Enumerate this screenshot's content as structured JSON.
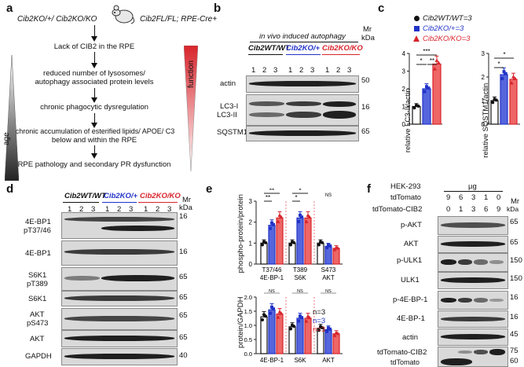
{
  "panel_a": {
    "label": "a",
    "genotype_left": "Cib2KO/+/ Cib2KO/KO",
    "genotype_right": "Cib2FL/FL; RPE-Cre+",
    "steps": [
      "Lack of CIB2 in the RPE",
      "reduced number of lysosomes/",
      "autophagy associated protein levels",
      "chronic phagocytic dysregulation",
      "chronic accumulation of esterified lipids/ APOE/ C3",
      "below and within the RPE",
      "RPE pathology and secondary PR dysfunction"
    ],
    "age_label": "age",
    "function_label": "function"
  },
  "panel_b": {
    "label": "b",
    "title": "in vivo induced autophagy",
    "groups": [
      "Cib2WT/WT",
      "Cib2KO/+",
      "Cib2KO/KO"
    ],
    "lanes": [
      "1",
      "2",
      "3",
      "1",
      "2",
      "3",
      "1",
      "2",
      "3"
    ],
    "mr": "Mr",
    "kda": "kDa",
    "rows": [
      {
        "name": "actin",
        "mw": "50"
      },
      {
        "name": "LC3-I",
        "name2": "LC3-II",
        "mw": "16"
      },
      {
        "name": "SQSTM1",
        "mw": "65"
      }
    ]
  },
  "panel_c": {
    "label": "c",
    "legend": [
      "Cib2WT/WT=3",
      "Cib2KO/+=3",
      "Cib2KO/KO=3"
    ],
    "ylabel_left": "relative LC3-II/actin",
    "ylabel_right": "relative SQSTM1/actin",
    "left_ticks": [
      "0",
      "1",
      "2",
      "3",
      "4"
    ],
    "right_ticks": [
      "0",
      "1",
      "2",
      "3"
    ],
    "left_sig": [
      "***",
      "*",
      "**"
    ],
    "right_sig": [
      "*",
      "*"
    ]
  },
  "panel_d": {
    "label": "d",
    "groups": [
      "Cib2WT/WT",
      "Cib2KO/+",
      "Cib2KO/KO"
    ],
    "lanes": [
      "1",
      "2",
      "3",
      "1",
      "2",
      "3",
      "1",
      "2",
      "3"
    ],
    "mr": "Mr",
    "kda": "kDa",
    "rows": [
      {
        "name": "4E-BP1",
        "name2": "pT37/46",
        "mw": "16"
      },
      {
        "name": "4E-BP1",
        "name2": "",
        "mw": "16"
      },
      {
        "name": "S6K1",
        "name2": "pT389",
        "mw": "65"
      },
      {
        "name": "S6K1",
        "name2": "",
        "mw": "65"
      },
      {
        "name": "AKT",
        "name2": "pS473",
        "mw": "65"
      },
      {
        "name": "AKT",
        "name2": "",
        "mw": "65"
      },
      {
        "name": "GAPDH",
        "name2": "",
        "mw": "40"
      }
    ]
  },
  "panel_e": {
    "label": "e",
    "ylabel_top": "phospho-protein/protein",
    "ylabel_bottom": "protein/GAPDH",
    "top_ticks": [
      "0",
      "1",
      "2",
      "3"
    ],
    "bottom_ticks": [
      "0.0",
      "0.5",
      "1.0",
      "1.5",
      "2.0"
    ],
    "top_categories": [
      [
        "T37/46",
        "4E-BP-1"
      ],
      [
        "T389",
        "S6K"
      ],
      [
        "S473",
        "AKT"
      ]
    ],
    "bottom_categories": [
      "4E-BP-1",
      "S6K",
      "AKT"
    ],
    "top_sig": [
      "**",
      "*",
      "*",
      "NS"
    ],
    "bottom_sig": [
      "NS",
      "NS",
      "NS",
      "NS",
      "NS",
      "NS"
    ],
    "n_labels": [
      "n=3",
      "n=3",
      "n=3"
    ]
  },
  "panel_f": {
    "label": "f",
    "cell_line": "HEK-293",
    "unit": "µg",
    "row1_label": "tdTomato",
    "row1_vals": [
      "9",
      "6",
      "3",
      "1",
      "0"
    ],
    "row2_label": "tdTomato-CIB2",
    "row2_vals": [
      "0",
      "1",
      "3",
      "6",
      "9"
    ],
    "mr": "Mr",
    "kda": "kDa",
    "rows": [
      {
        "name": "p-AKT",
        "mw": "65"
      },
      {
        "name": "AKT",
        "mw": "65"
      },
      {
        "name": "p-ULK1",
        "mw": "150"
      },
      {
        "name": "ULK1",
        "mw": "150"
      },
      {
        "name": "p-4E-BP-1",
        "mw": "16"
      },
      {
        "name": "4E-BP-1",
        "mw": "16"
      },
      {
        "name": "actin",
        "mw": "45"
      },
      {
        "name": "tdTomato-CIB2",
        "mw": "75"
      },
      {
        "name": "tdTomato",
        "mw": "60"
      }
    ]
  },
  "colors": {
    "wt": "#111111",
    "het": "#2233c8",
    "ko": "#d8242b"
  },
  "chart_data": [
    {
      "type": "bar",
      "panel": "c-left",
      "categories": [
        "Cib2WT/WT",
        "Cib2KO/+",
        "Cib2KO/KO"
      ],
      "values": [
        1.0,
        2.0,
        3.4
      ],
      "ylabel": "relative LC3-II/actin",
      "ylim": [
        0,
        4
      ]
    },
    {
      "type": "bar",
      "panel": "c-right",
      "categories": [
        "Cib2WT/WT",
        "Cib2KO/+",
        "Cib2KO/KO"
      ],
      "values": [
        1.0,
        2.1,
        1.9
      ],
      "ylabel": "relative SQSTM1/actin",
      "ylim": [
        0,
        3
      ]
    },
    {
      "type": "bar",
      "panel": "e-top",
      "categories": [
        "T37/46 4E-BP-1",
        "T389 S6K",
        "S473 AKT"
      ],
      "series": [
        {
          "name": "Cib2WT/WT",
          "values": [
            1.0,
            1.0,
            1.0
          ]
        },
        {
          "name": "Cib2KO/+",
          "values": [
            1.85,
            2.2,
            0.85
          ]
        },
        {
          "name": "Cib2KO/KO",
          "values": [
            2.2,
            2.2,
            0.75
          ]
        }
      ],
      "ylabel": "phospho-protein/protein",
      "ylim": [
        0,
        3
      ]
    },
    {
      "type": "bar",
      "panel": "e-bottom",
      "categories": [
        "4E-BP-1",
        "S6K",
        "AKT"
      ],
      "series": [
        {
          "name": "Cib2WT/WT",
          "values": [
            1.3,
            0.95,
            0.9
          ]
        },
        {
          "name": "Cib2KO/+",
          "values": [
            1.55,
            1.25,
            0.85
          ]
        },
        {
          "name": "Cib2KO/KO",
          "values": [
            1.4,
            1.25,
            0.7
          ]
        }
      ],
      "ylabel": "protein/GAPDH",
      "ylim": [
        0,
        2
      ]
    }
  ]
}
